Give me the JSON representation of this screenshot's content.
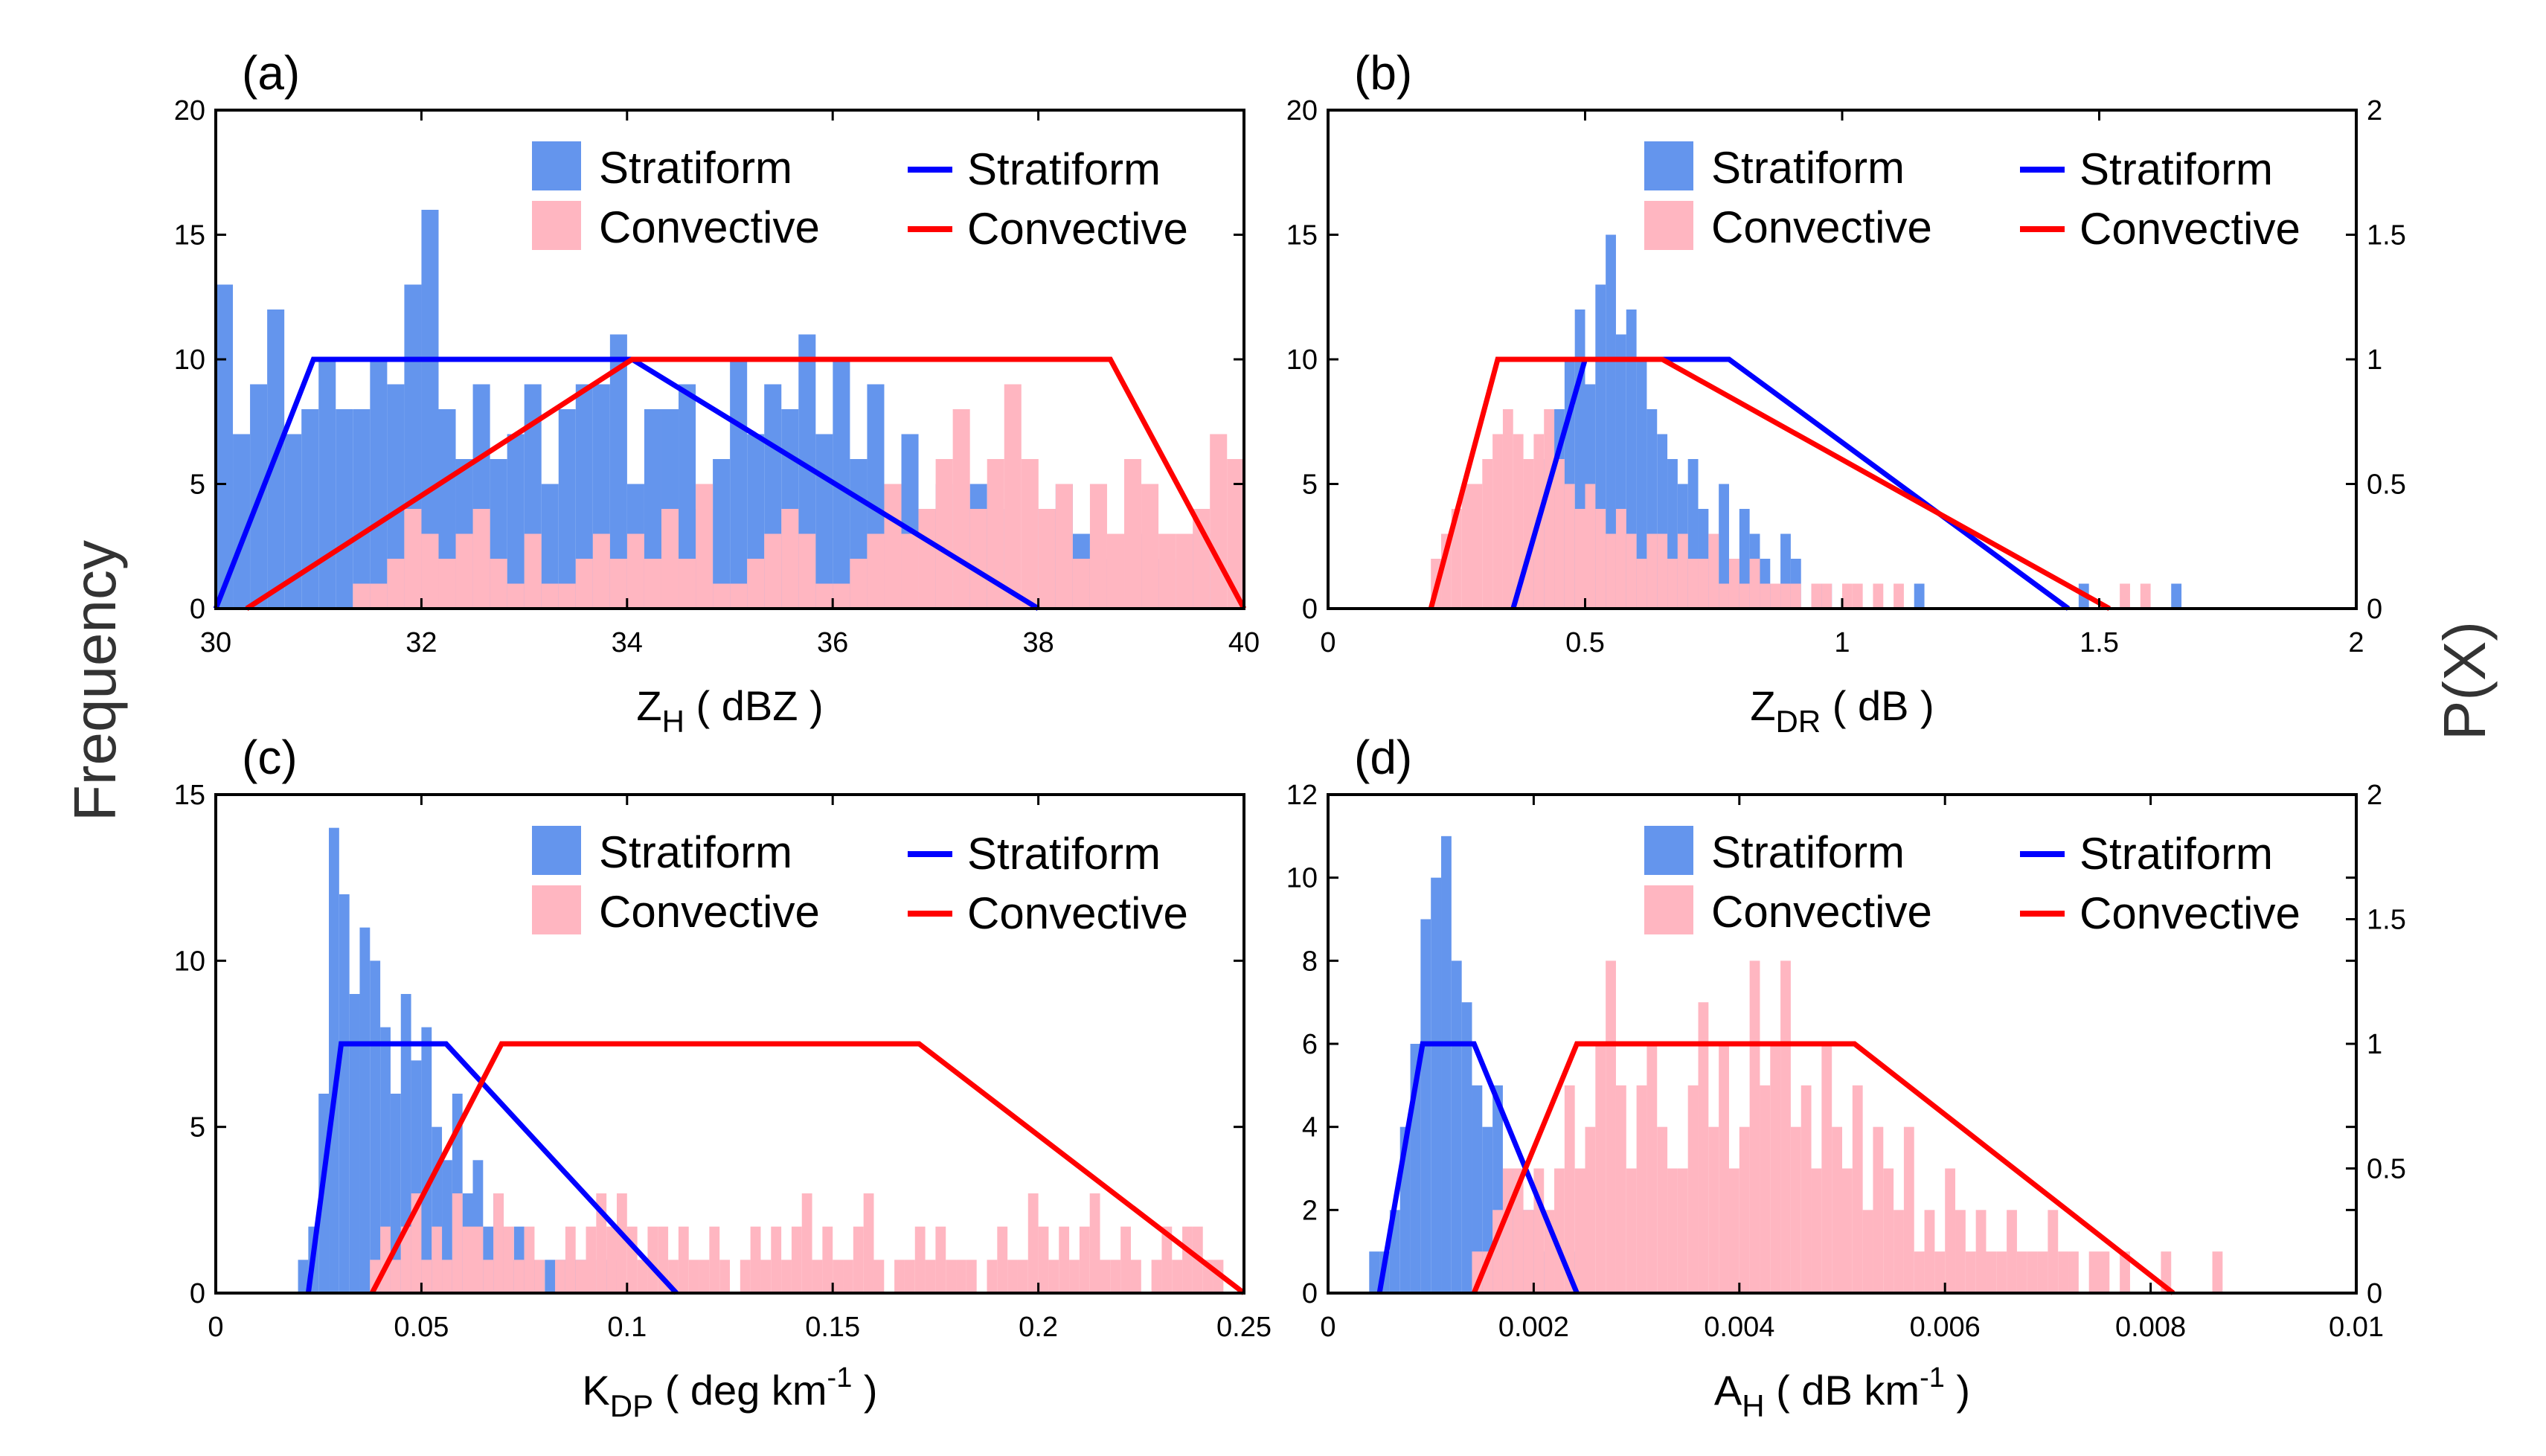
{
  "figure": {
    "shared_ylabel_left": "Frequency",
    "shared_ylabel_right": "P(X)"
  },
  "colors": {
    "stratiform_bar": "#6495ED",
    "convective_bar": "#FFB6C1",
    "stratiform_line": "#0000FF",
    "convective_line": "#FF0000"
  },
  "chart_data": [
    {
      "panel": "(a)",
      "type": "bar",
      "xlabel": {
        "main": "Z",
        "sub": "H",
        "unit": " ( dBZ )"
      },
      "xlim": [
        30,
        40
      ],
      "xticks": [
        30,
        32,
        34,
        36,
        38,
        40
      ],
      "ylim": [
        0,
        20
      ],
      "yticks": [
        0,
        5,
        10,
        15,
        20
      ],
      "right_axis": false,
      "legend": {
        "bars": [
          "Stratiform",
          "Convective"
        ],
        "lines": [
          "Stratiform",
          "Convective"
        ]
      },
      "bin_start": 30,
      "bin_width": 0.1667,
      "stratiform": [
        13,
        7,
        9,
        12,
        7,
        8,
        10,
        8,
        8,
        10,
        9,
        13,
        16,
        8,
        6,
        9,
        6,
        7,
        9,
        5,
        8,
        9,
        9,
        11,
        5,
        8,
        8,
        9,
        4,
        6,
        10,
        7,
        9,
        8,
        11,
        7,
        10,
        6,
        9,
        2,
        7,
        0,
        5,
        0,
        5,
        4,
        0,
        0,
        4,
        5,
        3,
        2,
        1,
        0,
        3,
        2,
        0,
        3,
        0,
        0
      ],
      "convective": [
        0,
        0,
        0,
        0,
        0,
        0,
        0,
        0,
        1,
        1,
        2,
        4,
        3,
        2,
        3,
        4,
        2,
        1,
        3,
        1,
        1,
        2,
        3,
        2,
        3,
        2,
        4,
        2,
        5,
        1,
        1,
        2,
        3,
        4,
        3,
        1,
        1,
        2,
        3,
        5,
        3,
        4,
        6,
        8,
        4,
        6,
        9,
        6,
        4,
        5,
        2,
        5,
        3,
        6,
        5,
        3,
        3,
        4,
        7,
        6
      ],
      "strat_line": {
        "x": [
          30,
          30.95,
          34.05,
          38
        ],
        "y": [
          0,
          1,
          1,
          0
        ]
      },
      "conv_line": {
        "x": [
          30.3,
          34.05,
          38.7,
          40
        ],
        "y": [
          0,
          1,
          1,
          0
        ]
      }
    },
    {
      "panel": "(b)",
      "type": "bar",
      "xlabel": {
        "main": "Z",
        "sub": "DR",
        "unit": " ( dB )"
      },
      "xlim": [
        0,
        2
      ],
      "xticks": [
        0,
        0.5,
        1,
        1.5,
        2
      ],
      "xtick_labels": [
        "0",
        "0.5",
        "1",
        "1.5",
        "2"
      ],
      "ylim": [
        0,
        20
      ],
      "yticks": [
        0,
        5,
        10,
        15,
        20
      ],
      "right_axis": true,
      "y2lim": [
        0,
        2
      ],
      "y2ticks": [
        "0",
        "0.5",
        "1",
        "1.5",
        "2"
      ],
      "legend": {
        "bars": [
          "Stratiform",
          "Convective"
        ],
        "lines": [
          "Stratiform",
          "Convective"
        ]
      },
      "bin_start": 0.2,
      "bin_width": 0.02,
      "stratiform": [
        0,
        0,
        0,
        0,
        0,
        0,
        0,
        0,
        1,
        2,
        4,
        6,
        8,
        10,
        12,
        9,
        13,
        15,
        11,
        12,
        10,
        8,
        7,
        6,
        5,
        6,
        4,
        3,
        5,
        2,
        4,
        3,
        2,
        1,
        3,
        2,
        0,
        1,
        1,
        0,
        0,
        0,
        0,
        0,
        0,
        0,
        0,
        1,
        0,
        0,
        0,
        0,
        0,
        0,
        0,
        0,
        0,
        0,
        0,
        0,
        0,
        0,
        0,
        1,
        0,
        0,
        0,
        0,
        0,
        0,
        0,
        0,
        1
      ],
      "convective": [
        2,
        3,
        4,
        5,
        5,
        6,
        7,
        8,
        7,
        6,
        7,
        8,
        6,
        5,
        4,
        5,
        4,
        3,
        4,
        3,
        2,
        3,
        3,
        2,
        3,
        2,
        2,
        3,
        1,
        2,
        1,
        2,
        1,
        1,
        1,
        1,
        0,
        1,
        1,
        0,
        1,
        1,
        0,
        1,
        0,
        1,
        0,
        0,
        0,
        0,
        0,
        0,
        0,
        0,
        0,
        0,
        0,
        0,
        0,
        0,
        0,
        0,
        0,
        0,
        0,
        0,
        0,
        1,
        0,
        1
      ],
      "strat_line": {
        "x": [
          0.36,
          0.5,
          0.78,
          1.44
        ],
        "y": [
          0,
          1,
          1,
          0
        ]
      },
      "conv_line": {
        "x": [
          0.2,
          0.33,
          0.65,
          1.52
        ],
        "y": [
          0,
          1,
          1,
          0
        ]
      }
    },
    {
      "panel": "(c)",
      "type": "bar",
      "xlabel": {
        "main": "K",
        "sub": "DP",
        "unit": " ( deg km",
        "sup": "-1",
        "tail": " )"
      },
      "xlim": [
        0,
        0.25
      ],
      "xticks": [
        0,
        0.05,
        0.1,
        0.15,
        0.2,
        0.25
      ],
      "xtick_labels": [
        "0",
        "0.05",
        "0.1",
        "0.15",
        "0.2",
        "0.25"
      ],
      "ylim": [
        0,
        15
      ],
      "yticks": [
        0,
        5,
        10,
        15
      ],
      "right_axis": false,
      "legend": {
        "bars": [
          "Stratiform",
          "Convective"
        ],
        "lines": [
          "Stratiform",
          "Convective"
        ]
      },
      "bin_start": 0.02,
      "bin_width": 0.0025,
      "stratiform": [
        1,
        2,
        6,
        14,
        12,
        9,
        11,
        10,
        8,
        6,
        9,
        7,
        8,
        5,
        4,
        6,
        3,
        4,
        2,
        3,
        1,
        2,
        1,
        0,
        1,
        1,
        1,
        1,
        0,
        1,
        1,
        0,
        0,
        0,
        0,
        0,
        0,
        0,
        0,
        0,
        0,
        0,
        0,
        0,
        0,
        0,
        0
      ],
      "convective": [
        0,
        0,
        0,
        0,
        0,
        0,
        0,
        1,
        2,
        1,
        2,
        3,
        1,
        2,
        1,
        3,
        2,
        2,
        1,
        3,
        2,
        1,
        2,
        1,
        0,
        1,
        2,
        1,
        2,
        3,
        2,
        3,
        2,
        1,
        2,
        2,
        1,
        2,
        1,
        1,
        2,
        1,
        0,
        1,
        2,
        1,
        2,
        1,
        2,
        3,
        1,
        2,
        1,
        1,
        2,
        3,
        1,
        0,
        1,
        1,
        2,
        1,
        2,
        1,
        1,
        1,
        0,
        1,
        2,
        1,
        1,
        3,
        2,
        1,
        2,
        1,
        2,
        3,
        1,
        1,
        2,
        1,
        0,
        1,
        2,
        1,
        2,
        2,
        1,
        1,
        0,
        0,
        1,
        0,
        0,
        1
      ],
      "strat_line": {
        "x": [
          0.0225,
          0.0305,
          0.056,
          0.112
        ],
        "y": [
          0,
          1,
          1,
          0
        ]
      },
      "conv_line": {
        "x": [
          0.038,
          0.0695,
          0.171,
          0.25
        ],
        "y": [
          0,
          1,
          1,
          0
        ]
      }
    },
    {
      "panel": "(d)",
      "type": "bar",
      "xlabel": {
        "main": "A",
        "sub": "H",
        "unit": " ( dB km",
        "sup": "-1",
        "tail": " )"
      },
      "xlim": [
        0,
        0.01
      ],
      "xticks": [
        0,
        0.002,
        0.004,
        0.006,
        0.008,
        0.01
      ],
      "xtick_labels": [
        "0",
        "0.002",
        "0.004",
        "0.006",
        "0.008",
        "0.01"
      ],
      "ylim": [
        0,
        12
      ],
      "yticks": [
        0,
        2,
        4,
        6,
        8,
        10,
        12
      ],
      "right_axis": true,
      "y2lim": [
        0,
        2
      ],
      "y2ticks": [
        "0",
        "0.5",
        "1",
        "1.5",
        "2"
      ],
      "legend": {
        "bars": [
          "Stratiform",
          "Convective"
        ],
        "lines": [
          "Stratiform",
          "Convective"
        ]
      },
      "bin_start": 0.0004,
      "bin_width": 0.0001,
      "stratiform": [
        1,
        1,
        2,
        4,
        6,
        9,
        10,
        11,
        8,
        7,
        5,
        4,
        5,
        3,
        2,
        2,
        1,
        1,
        0,
        0,
        1
      ],
      "convective": [
        0,
        0,
        0,
        0,
        0,
        0,
        0,
        0,
        0,
        0,
        1,
        1,
        2,
        3,
        3,
        2,
        3,
        2,
        3,
        5,
        3,
        4,
        6,
        8,
        5,
        3,
        5,
        6,
        4,
        3,
        3,
        5,
        7,
        4,
        6,
        3,
        4,
        8,
        5,
        6,
        8,
        4,
        5,
        3,
        6,
        4,
        3,
        5,
        2,
        4,
        3,
        2,
        4,
        1,
        2,
        1,
        3,
        2,
        1,
        2,
        1,
        1,
        2,
        1,
        1,
        1,
        2,
        1,
        1,
        0,
        1,
        1,
        0,
        1,
        0,
        0,
        0,
        1,
        0,
        0,
        0,
        0,
        1
      ],
      "strat_line": {
        "x": [
          0.0005,
          0.00092,
          0.00142,
          0.00242
        ],
        "y": [
          0,
          1,
          1,
          0
        ]
      },
      "conv_line": {
        "x": [
          0.00142,
          0.00242,
          0.00512,
          0.00822
        ],
        "y": [
          0,
          1,
          1,
          0
        ]
      }
    }
  ]
}
